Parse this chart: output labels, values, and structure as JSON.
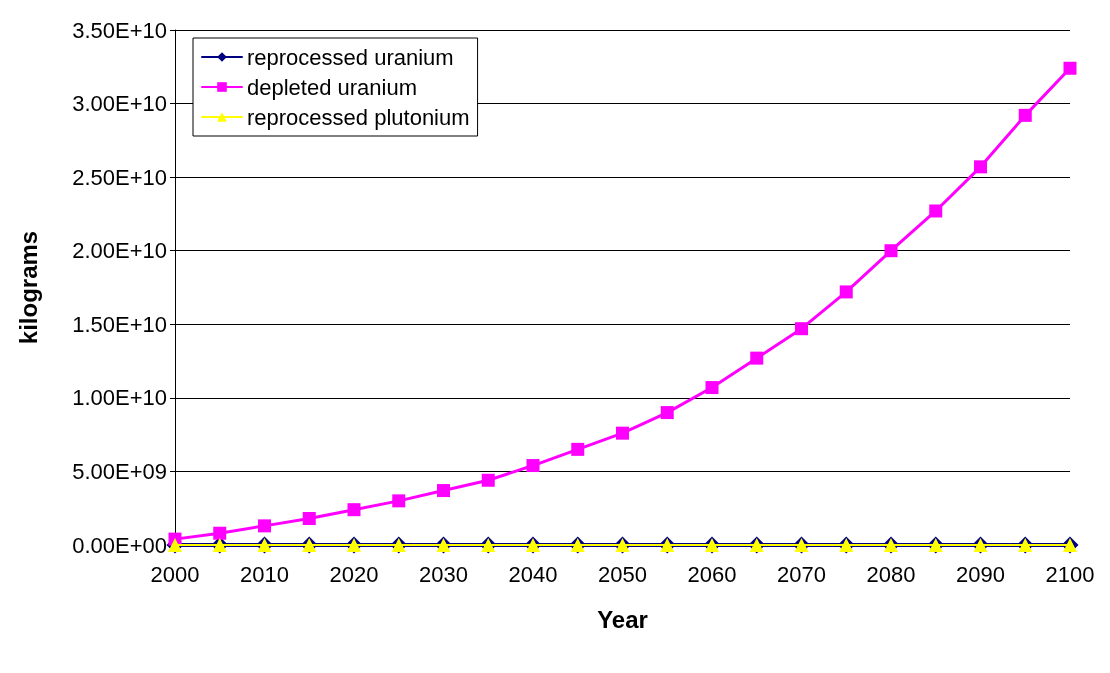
{
  "chart_data": {
    "type": "line",
    "xlabel": "Year",
    "ylabel": "kilograms",
    "x": [
      2000,
      2005,
      2010,
      2015,
      2020,
      2025,
      2030,
      2035,
      2040,
      2045,
      2050,
      2055,
      2060,
      2065,
      2070,
      2075,
      2080,
      2085,
      2090,
      2095,
      2100
    ],
    "series": [
      {
        "name": "reprocessed uranium",
        "color": "#000080",
        "marker": "diamond",
        "values": [
          0,
          0,
          0,
          0,
          0,
          0,
          0,
          0,
          0,
          0,
          0,
          0,
          0,
          0,
          0,
          0,
          0,
          0,
          0,
          0,
          0
        ]
      },
      {
        "name": "depleted uranium",
        "color": "#ff00ff",
        "marker": "square",
        "values": [
          400000000.0,
          800000000.0,
          1300000000.0,
          1800000000.0,
          2400000000.0,
          3000000000.0,
          3700000000.0,
          4400000000.0,
          5400000000.0,
          6500000000.0,
          7600000000.0,
          9000000000.0,
          10700000000.0,
          12700000000.0,
          14700000000.0,
          17200000000.0,
          20000000000.0,
          22700000000.0,
          25700000000.0,
          29200000000.0,
          32400000000.0
        ]
      },
      {
        "name": "reprocessed plutonium",
        "color": "#ffff00",
        "marker": "triangle",
        "values": [
          0,
          0,
          0,
          0,
          0,
          0,
          0,
          0,
          0,
          0,
          0,
          0,
          0,
          0,
          0,
          0,
          0,
          0,
          0,
          0,
          0
        ]
      }
    ],
    "xlim": [
      2000,
      2100
    ],
    "xticks": [
      2000,
      2010,
      2020,
      2030,
      2040,
      2050,
      2060,
      2070,
      2080,
      2090,
      2100
    ],
    "ylim": [
      0,
      35000000000.0
    ],
    "yticks": [
      {
        "value": 0,
        "label": "0.00E+00"
      },
      {
        "value": 5000000000.0,
        "label": "5.00E+09"
      },
      {
        "value": 10000000000.0,
        "label": "1.00E+10"
      },
      {
        "value": 15000000000.0,
        "label": "1.50E+10"
      },
      {
        "value": 20000000000.0,
        "label": "2.00E+10"
      },
      {
        "value": 25000000000.0,
        "label": "2.50E+10"
      },
      {
        "value": 30000000000.0,
        "label": "3.00E+10"
      },
      {
        "value": 35000000000.0,
        "label": "3.50E+10"
      }
    ],
    "grid": "y",
    "legend": "top left",
    "line_style": "solid"
  }
}
